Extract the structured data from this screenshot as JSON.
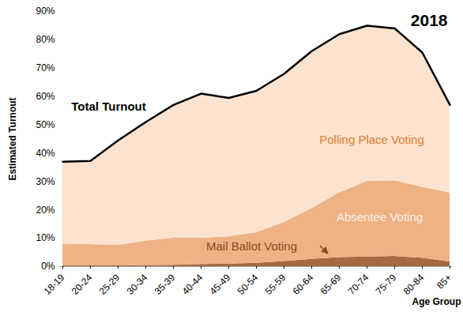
{
  "chart_data": {
    "type": "area",
    "title": "2018",
    "x_label": "Age Group",
    "y_label": "Estimated Turnout",
    "stacked": true,
    "grid": false,
    "data_labels": false,
    "total_label": "Total Turnout",
    "categories": [
      "18-19",
      "20-24",
      "25-29",
      "30-34",
      "35-39",
      "40-44",
      "45-49",
      "50-54",
      "55-59",
      "60-64",
      "65-69",
      "70-74",
      "75-79",
      "80-84",
      "85+"
    ],
    "series": [
      {
        "name": "Mail Ballot Voting",
        "color": "#a76a40",
        "values": [
          0.3,
          0.3,
          0.3,
          0.4,
          0.5,
          0.8,
          0.9,
          1.2,
          1.8,
          2.6,
          3.2,
          3.4,
          3.6,
          3.0,
          1.7
        ]
      },
      {
        "name": "Absentee Voting",
        "color": "#efb285",
        "values": [
          7.7,
          7.5,
          7.2,
          8.6,
          9.5,
          9.2,
          9.6,
          10.8,
          13.7,
          17.9,
          22.8,
          26.6,
          26.7,
          25.0,
          24.3
        ]
      },
      {
        "name": "Polling Place Voting",
        "color": "#fbe3d0",
        "values": [
          29,
          29.5,
          37,
          42,
          47,
          51,
          49,
          50,
          52.5,
          55.5,
          56,
          55,
          53.7,
          47.5,
          31
        ]
      }
    ],
    "ylim": [
      0,
      90
    ],
    "yticks": [
      {
        "value": 0,
        "label": "0%"
      },
      {
        "value": 10,
        "label": "10%"
      },
      {
        "value": 20,
        "label": "20%"
      },
      {
        "value": 30,
        "label": "30%"
      },
      {
        "value": 40,
        "label": "40%"
      },
      {
        "value": 50,
        "label": "50%"
      },
      {
        "value": 60,
        "label": "60%"
      },
      {
        "value": 70,
        "label": "70%"
      },
      {
        "value": 80,
        "label": "80%"
      },
      {
        "value": 90,
        "label": "90%"
      }
    ]
  }
}
